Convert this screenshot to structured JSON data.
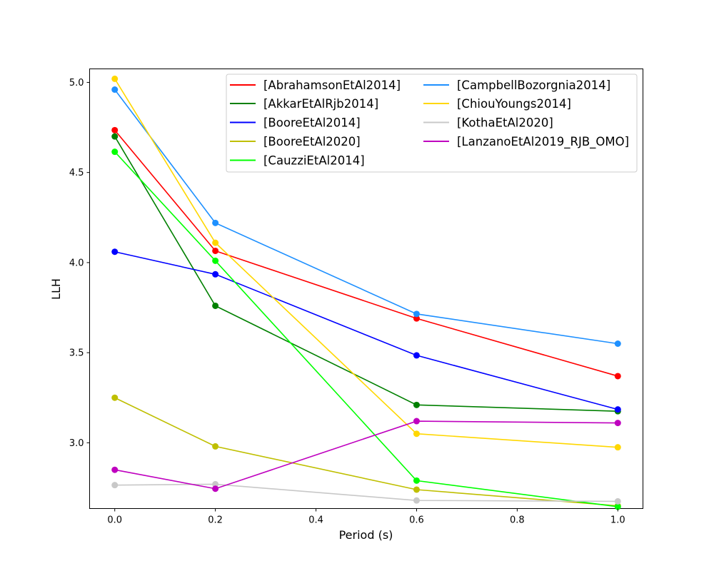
{
  "chart_data": {
    "type": "line",
    "title": "",
    "xlabel": "Period (s)",
    "ylabel": "LLH",
    "xlim": [
      -0.05,
      1.05
    ],
    "ylim": [
      2.635,
      5.075
    ],
    "xticks": [
      0.0,
      0.2,
      0.4,
      0.6,
      0.8,
      1.0
    ],
    "xtick_labels": [
      "0.0",
      "0.2",
      "0.4",
      "0.6",
      "0.8",
      "1.0"
    ],
    "yticks": [
      3.0,
      3.5,
      4.0,
      4.5,
      5.0
    ],
    "ytick_labels": [
      "3.0",
      "3.5",
      "4.0",
      "4.5",
      "5.0"
    ],
    "grid": false,
    "legend_position": "top-right",
    "x": [
      0.0,
      0.2,
      0.6,
      1.0
    ],
    "series": [
      {
        "name": "[AbrahamsonEtAl2014]",
        "color": "#ff0000",
        "values": [
          4.735,
          4.065,
          3.69,
          3.37
        ]
      },
      {
        "name": "[AkkarEtAlRjb2014]",
        "color": "#008000",
        "values": [
          4.7,
          3.76,
          3.21,
          3.175
        ]
      },
      {
        "name": "[BooreEtAl2014]",
        "color": "#0000ff",
        "values": [
          4.06,
          3.935,
          3.485,
          3.185
        ]
      },
      {
        "name": "[BooreEtAl2020]",
        "color": "#bfbf00",
        "values": [
          3.25,
          2.98,
          2.74,
          2.65
        ]
      },
      {
        "name": "[CauzziEtAl2014]",
        "color": "#00ff00",
        "values": [
          4.615,
          4.01,
          2.79,
          2.645
        ]
      },
      {
        "name": "[CampbellBozorgnia2014]",
        "color": "#1e90ff",
        "values": [
          4.96,
          4.22,
          3.715,
          3.55
        ]
      },
      {
        "name": "[ChiouYoungs2014]",
        "color": "#ffd700",
        "values": [
          5.02,
          4.11,
          3.05,
          2.975
        ]
      },
      {
        "name": "[KothaEtAl2020]",
        "color": "#c8c8c8",
        "values": [
          2.765,
          2.77,
          2.68,
          2.675
        ]
      },
      {
        "name": "[LanzanoEtAl2019_RJB_OMO]",
        "color": "#bf00bf",
        "values": [
          2.85,
          2.745,
          3.12,
          3.11
        ]
      }
    ]
  }
}
